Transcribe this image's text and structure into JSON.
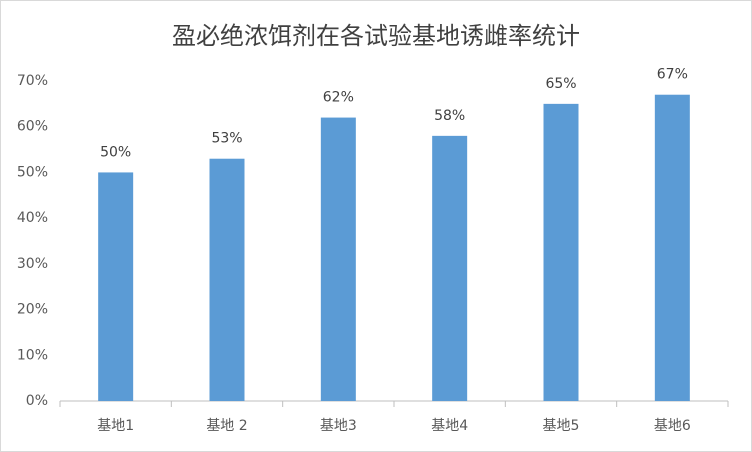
{
  "chart_data": {
    "type": "bar",
    "title": "盈必绝浓饵剂在各试验基地诱雌率统计",
    "categories": [
      "基地1",
      "基地 2",
      "基地3",
      "基地4",
      "基地5",
      "基地6"
    ],
    "values": [
      50,
      53,
      62,
      58,
      65,
      67
    ],
    "value_labels": [
      "50%",
      "53%",
      "62%",
      "58%",
      "65%",
      "67%"
    ],
    "color": "#5b9bd5",
    "ylim": [
      0,
      70
    ],
    "yticks": [
      {
        "value": 0,
        "label": "0%"
      },
      {
        "value": 10,
        "label": "10%"
      },
      {
        "value": 20,
        "label": "20%"
      },
      {
        "value": 30,
        "label": "30%"
      },
      {
        "value": 40,
        "label": "40%"
      },
      {
        "value": 50,
        "label": "50%"
      },
      {
        "value": 60,
        "label": "60%"
      },
      {
        "value": 70,
        "label": "70%"
      }
    ],
    "grid": false
  }
}
